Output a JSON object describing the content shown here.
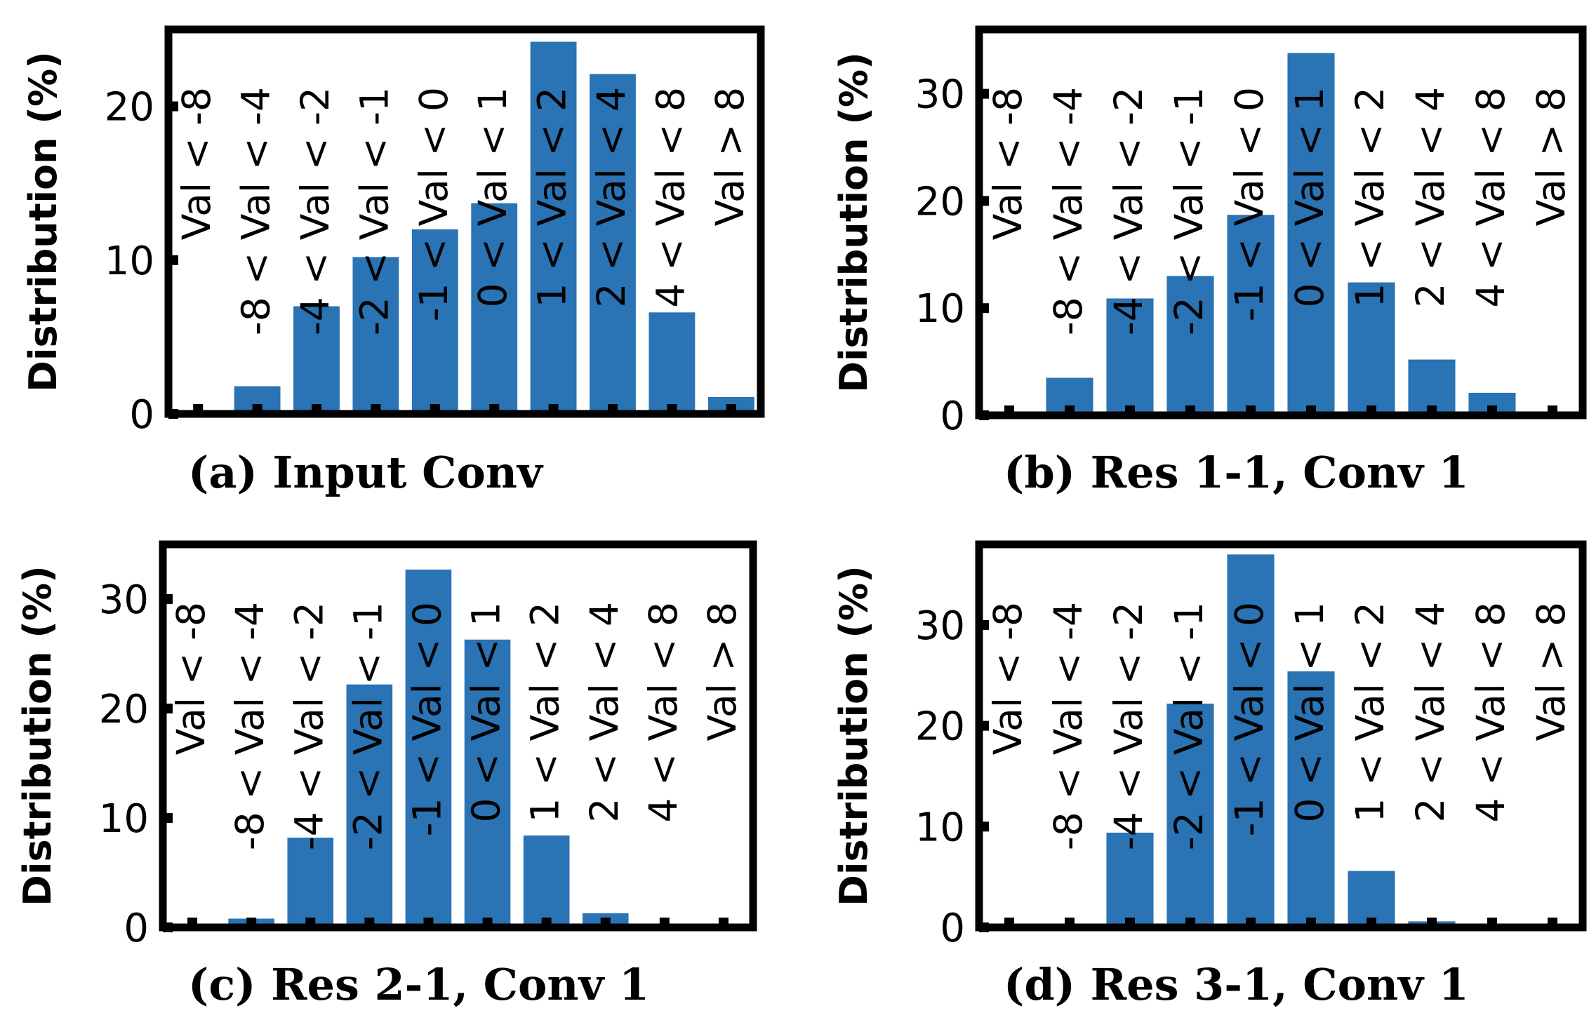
{
  "figure": {
    "ylabel": "Distribution (%)",
    "bar_color": "#2a73b4"
  },
  "chart_data": [
    {
      "type": "bar",
      "title": "(a) Input Conv",
      "ylabel": "Distribution (%)",
      "xlabel": "",
      "ylim": [
        0,
        25
      ],
      "yticks": [
        0,
        10,
        20
      ],
      "categories": [
        "Val < -8",
        "-8 < Val < -4",
        "-4 < Val < -2",
        "-2 < Val < -1",
        "-1 < Val < 0",
        "0 < Val < 1",
        "1 < Val < 2",
        "2 < Val < 4",
        "4 < Val < 8",
        "Val > 8"
      ],
      "values": [
        0.1,
        1.8,
        7.0,
        10.2,
        12.0,
        13.7,
        24.2,
        22.1,
        6.6,
        1.1
      ]
    },
    {
      "type": "bar",
      "title": "(b) Res 1-1, Conv 1",
      "ylabel": "Distribution (%)",
      "xlabel": "",
      "ylim": [
        0,
        36
      ],
      "yticks": [
        0,
        10,
        20,
        30
      ],
      "categories": [
        "Val < -8",
        "-8 < Val < -4",
        "-4 < Val < -2",
        "-2 < Val < -1",
        "-1 < Val < 0",
        "0 < Val < 1",
        "1 < Val < 2",
        "2 < Val < 4",
        "4 < Val < 8",
        "Val > 8"
      ],
      "values": [
        0.1,
        3.5,
        10.9,
        13.0,
        18.7,
        33.8,
        12.4,
        5.2,
        2.1,
        0.1
      ]
    },
    {
      "type": "bar",
      "title": "(c) Res 2-1, Conv 1",
      "ylabel": "Distribution (%)",
      "xlabel": "",
      "ylim": [
        0,
        35
      ],
      "yticks": [
        0,
        10,
        20,
        30
      ],
      "categories": [
        "Val < -8",
        "-8 < Val < -4",
        "-4 < Val < -2",
        "-2 < Val < -1",
        "-1 < Val < 0",
        "0 < Val < 1",
        "1 < Val < 2",
        "2 < Val < 4",
        "4 < Val < 8",
        "Val > 8"
      ],
      "values": [
        0.1,
        0.8,
        8.2,
        22.2,
        32.7,
        26.3,
        8.4,
        1.3,
        0.1,
        0.1
      ]
    },
    {
      "type": "bar",
      "title": "(d) Res 3-1, Conv 1",
      "ylabel": "Distribution (%)",
      "xlabel": "",
      "ylim": [
        0,
        38
      ],
      "yticks": [
        0,
        10,
        20,
        30
      ],
      "categories": [
        "Val < -8",
        "-8 < Val < -4",
        "-4 < Val < -2",
        "-2 < Val < -1",
        "-1 < Val < 0",
        "0 < Val < 1",
        "1 < Val < 2",
        "2 < Val < 4",
        "4 < Val < 8",
        "Val > 8"
      ],
      "values": [
        0.1,
        0.1,
        9.4,
        22.2,
        37.0,
        25.4,
        5.6,
        0.6,
        0.1,
        0.1
      ]
    }
  ]
}
